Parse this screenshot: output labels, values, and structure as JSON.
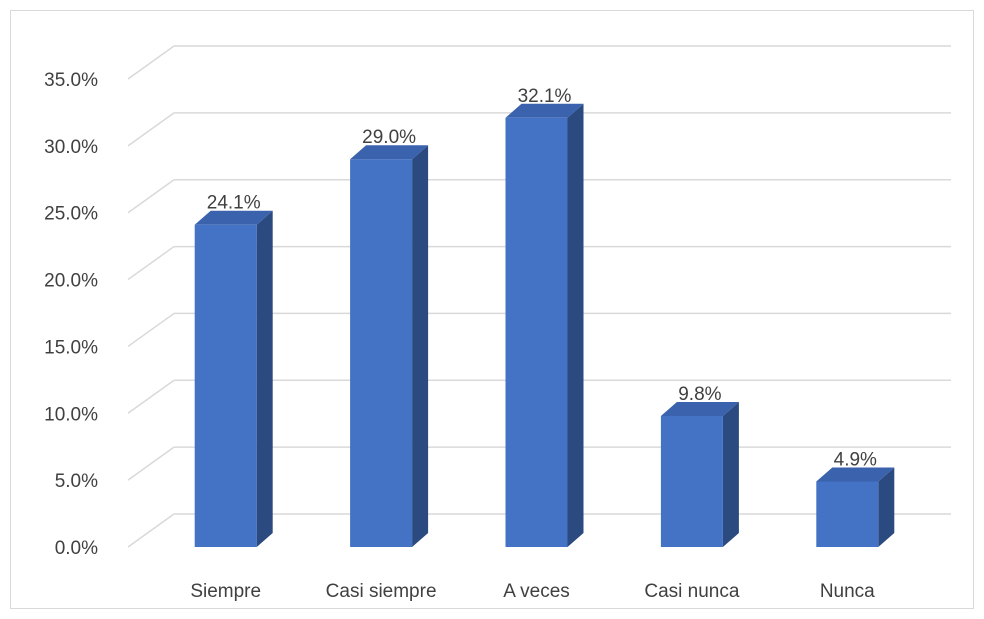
{
  "chart_data": {
    "type": "bar",
    "style": "3d-column",
    "categories": [
      "Siempre",
      "Casi siempre",
      "A veces",
      "Casi nunca",
      "Nunca"
    ],
    "values": [
      24.1,
      29.0,
      32.1,
      9.8,
      4.9
    ],
    "value_labels": [
      "24.1%",
      "29.0%",
      "32.1%",
      "9.8%",
      "4.9%"
    ],
    "y_ticks": [
      0,
      5,
      10,
      15,
      20,
      25,
      30,
      35
    ],
    "y_tick_labels": [
      "0.0%",
      "5.0%",
      "10.0%",
      "15.0%",
      "20.0%",
      "25.0%",
      "30.0%",
      "35.0%"
    ],
    "ylim": [
      0,
      35
    ],
    "title": "",
    "xlabel": "",
    "ylabel": "",
    "grid": true,
    "legend": false,
    "colors": {
      "bar_front": "#4472c4",
      "bar_side": "#2a4a80",
      "bar_top": "#3a62ad",
      "grid": "#d9d9d9",
      "text": "#404040"
    }
  }
}
